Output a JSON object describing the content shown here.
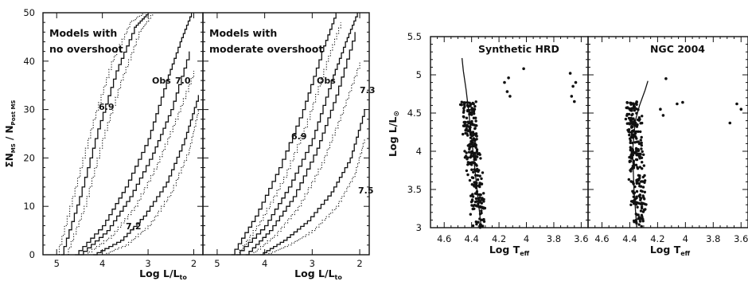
{
  "chart_data": [
    {
      "type": "line",
      "panel": "left",
      "xlabel": "Log L/L",
      "xlabel_subscript": "to",
      "ylabel": "ΣN",
      "ylabel_sub1": "MS",
      "ylabel_mid": " / N",
      "ylabel_sub2": "Post MS",
      "xlim": [
        5.3,
        1.8
      ],
      "ylim": [
        0,
        50
      ],
      "x_ticks": [
        5,
        4,
        3,
        2
      ],
      "y_ticks": [
        0,
        10,
        20,
        30,
        40,
        50
      ],
      "grid": false,
      "subpanels": [
        {
          "annotation_lines": [
            "Models with",
            "no overshoot"
          ],
          "curve_labels": [
            "6.9",
            "7.2",
            "Obs",
            "7.0"
          ],
          "series": [
            {
              "name": "6.9",
              "style": "dotted",
              "x": [
                5.0,
                4.6,
                4.2,
                3.8,
                3.4,
                3.1
              ],
              "y": [
                0,
                14,
                28,
                40,
                48,
                50
              ]
            },
            {
              "name": "6.9",
              "style": "solid",
              "x": [
                4.9,
                4.5,
                4.1,
                3.7,
                3.3,
                3.0
              ],
              "y": [
                0,
                12,
                26,
                38,
                47,
                50
              ]
            },
            {
              "name": "6.9",
              "style": "dotted",
              "x": [
                4.8,
                4.4,
                4.0,
                3.6,
                3.2,
                2.9
              ],
              "y": [
                0,
                10,
                24,
                36,
                46,
                50
              ]
            },
            {
              "name": "Obs",
              "style": "solid",
              "x": [
                4.6,
                4.0,
                3.5,
                3.0,
                2.6,
                2.3,
                2.05
              ],
              "y": [
                0,
                6,
                14,
                24,
                36,
                44,
                50
              ]
            },
            {
              "name": "7.0",
              "style": "solid",
              "x": [
                4.5,
                3.9,
                3.4,
                2.9,
                2.5,
                2.1
              ],
              "y": [
                0,
                5,
                12,
                21,
                30,
                42
              ]
            },
            {
              "name": "7.0",
              "style": "dotted",
              "x": [
                4.4,
                3.8,
                3.3,
                2.8,
                2.4,
                2.0
              ],
              "y": [
                0,
                4,
                10,
                19,
                28,
                38
              ]
            },
            {
              "name": "7.2",
              "style": "solid",
              "x": [
                4.2,
                3.6,
                3.1,
                2.6,
                2.2,
                1.9
              ],
              "y": [
                0,
                3,
                8,
                15,
                24,
                33
              ]
            },
            {
              "name": "7.2",
              "style": "dotted",
              "x": [
                4.0,
                3.5,
                3.0,
                2.5,
                2.1,
                1.9
              ],
              "y": [
                0,
                2,
                6,
                13,
                22,
                30
              ]
            }
          ]
        },
        {
          "annotation_lines": [
            "Models with",
            "moderate overshoot"
          ],
          "curve_labels": [
            "6.9",
            "7.3",
            "Obs",
            "7.5"
          ],
          "series": [
            {
              "name": "Obs",
              "style": "solid",
              "x": [
                4.6,
                4.0,
                3.5,
                3.0,
                2.6,
                2.3,
                2.05
              ],
              "y": [
                0,
                6,
                14,
                24,
                36,
                44,
                50
              ]
            },
            {
              "name": "6.9",
              "style": "solid",
              "x": [
                4.7,
                4.2,
                3.7,
                3.2,
                2.8,
                2.5
              ],
              "y": [
                0,
                8,
                18,
                30,
                42,
                50
              ]
            },
            {
              "name": "6.9",
              "style": "dotted",
              "x": [
                4.6,
                4.1,
                3.6,
                3.1,
                2.7,
                2.4
              ],
              "y": [
                0,
                7,
                16,
                28,
                40,
                48
              ]
            },
            {
              "name": "7.3",
              "style": "solid",
              "x": [
                4.4,
                3.9,
                3.4,
                2.9,
                2.5,
                2.1
              ],
              "y": [
                0,
                5,
                12,
                22,
                33,
                46
              ]
            },
            {
              "name": "7.3",
              "style": "dotted",
              "x": [
                4.3,
                3.8,
                3.3,
                2.8,
                2.4,
                2.0
              ],
              "y": [
                0,
                4,
                10,
                19,
                29,
                40
              ]
            },
            {
              "name": "7.5",
              "style": "solid",
              "x": [
                4.1,
                3.6,
                3.1,
                2.6,
                2.2,
                1.9
              ],
              "y": [
                0,
                3,
                7,
                13,
                20,
                30
              ]
            },
            {
              "name": "7.5",
              "style": "dotted",
              "x": [
                4.0,
                3.5,
                3.0,
                2.5,
                2.1,
                1.9
              ],
              "y": [
                0,
                2,
                5,
                10,
                17,
                24
              ]
            }
          ]
        }
      ]
    },
    {
      "type": "scatter",
      "panel": "right",
      "xlabel": "Log T",
      "xlabel_subscript": "eff",
      "ylabel": "Log L/L",
      "ylabel_subscript": "⊙",
      "xlim": [
        4.7,
        3.55
      ],
      "ylim": [
        3,
        5.5
      ],
      "x_ticks": [
        4.6,
        4.4,
        4.2,
        4.0,
        3.8,
        3.6
      ],
      "x_tick_labels": [
        "4.6",
        "4.4",
        "4.2",
        "4",
        "3.8",
        "3.6"
      ],
      "y_ticks": [
        3,
        3.5,
        4,
        4.5,
        5,
        5.5
      ],
      "y_tick_labels": [
        "3",
        "3.5",
        "4",
        "4.5",
        "5",
        "5.5"
      ],
      "grid": false,
      "subpanels": [
        {
          "title": "Synthetic HRD",
          "main_sequence": {
            "logT_center_at_logL3": 4.34,
            "logT_center_at_logL5": 4.45,
            "count": 260
          },
          "isochrone": {
            "x": [
              4.33,
              4.36,
              4.39,
              4.42,
              4.44,
              4.46,
              4.47
            ],
            "y": [
              3.0,
              3.5,
              4.0,
              4.5,
              4.8,
              5.05,
              5.22
            ]
          },
          "supergiants": [
            {
              "x": 4.16,
              "y": 4.9
            },
            {
              "x": 4.13,
              "y": 4.96
            },
            {
              "x": 4.14,
              "y": 4.78
            },
            {
              "x": 4.12,
              "y": 4.72
            },
            {
              "x": 4.02,
              "y": 5.08
            },
            {
              "x": 3.68,
              "y": 5.02
            },
            {
              "x": 3.66,
              "y": 4.85
            },
            {
              "x": 3.64,
              "y": 4.9
            },
            {
              "x": 3.67,
              "y": 4.72
            },
            {
              "x": 3.65,
              "y": 4.65
            }
          ]
        },
        {
          "title": "NGC 2004",
          "main_sequence": {
            "logT_center_at_logL3": 4.33,
            "logT_center_at_logL5": 4.39,
            "count": 260
          },
          "isochrone": {
            "x": [
              4.35,
              4.37,
              4.38,
              4.36,
              4.33,
              4.29,
              4.27
            ],
            "y": [
              3.0,
              3.5,
              4.0,
              4.4,
              4.6,
              4.8,
              4.92
            ]
          },
          "supergiants": [
            {
              "x": 4.14,
              "y": 4.95
            },
            {
              "x": 4.18,
              "y": 4.55
            },
            {
              "x": 4.16,
              "y": 4.47
            },
            {
              "x": 4.06,
              "y": 4.62
            },
            {
              "x": 4.02,
              "y": 4.64
            },
            {
              "x": 3.68,
              "y": 4.37
            },
            {
              "x": 3.63,
              "y": 4.62
            },
            {
              "x": 3.6,
              "y": 4.55
            }
          ]
        }
      ]
    }
  ]
}
